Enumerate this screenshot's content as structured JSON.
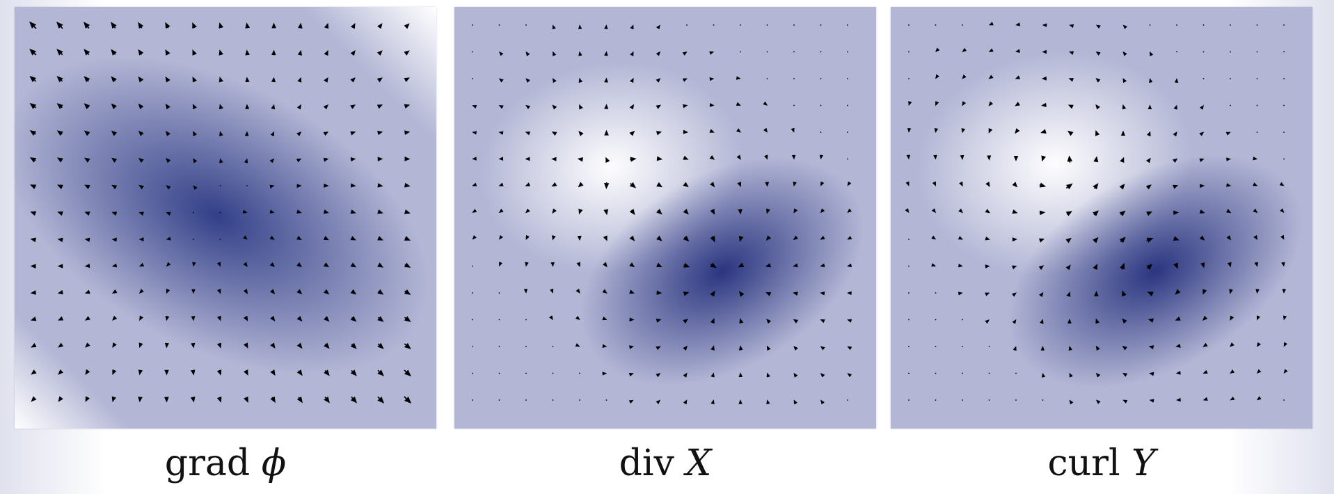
{
  "panels": [
    {
      "id": "grad",
      "caption": {
        "prefix": "grad",
        "symbol": "ϕ"
      },
      "field_type": "gradient",
      "background": "potential-minimum",
      "background_color": "#2c3a84"
    },
    {
      "id": "div",
      "caption": {
        "prefix": "div",
        "symbol": "X"
      },
      "field_type": "divergence",
      "background": "source-sink",
      "source_color": "#ffffff",
      "sink_color": "#1e2a78"
    },
    {
      "id": "curl",
      "caption": {
        "prefix": "curl",
        "symbol": "Y"
      },
      "field_type": "curl",
      "background": "vortex-pair",
      "counter_clockwise_color": "#ffffff",
      "clockwise_color": "#1e2a78"
    }
  ],
  "colors": {
    "arrow": "#000000",
    "base": "#b3b6d5",
    "light": "#ffffff",
    "dark": "#1e2a78"
  }
}
